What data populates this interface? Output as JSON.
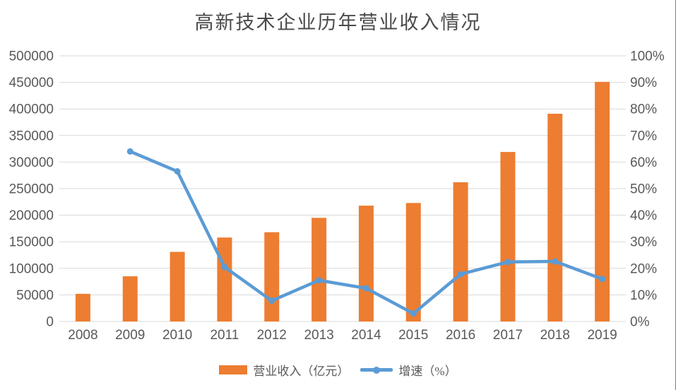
{
  "chart_data": {
    "type": "bar",
    "subtype": "bar-line-combo",
    "title": "高新技术企业历年营业收入情况",
    "categories": [
      "2008",
      "2009",
      "2010",
      "2011",
      "2012",
      "2013",
      "2014",
      "2015",
      "2016",
      "2017",
      "2018",
      "2019"
    ],
    "series": [
      {
        "name": "营业收入（亿元）",
        "type": "bar",
        "axis": "left",
        "color": "#ED7D31",
        "values": [
          52000,
          85000,
          131000,
          158000,
          168000,
          195000,
          218000,
          223000,
          262000,
          319000,
          391000,
          451000
        ]
      },
      {
        "name": "增速（%）",
        "type": "line",
        "axis": "right",
        "color": "#5B9BD5",
        "values": [
          null,
          64,
          56.5,
          20.5,
          7.8,
          15.5,
          12.5,
          3,
          17.8,
          22.4,
          22.6,
          16
        ]
      }
    ],
    "y_left": {
      "min": 0,
      "max": 500000,
      "step": 50000,
      "tick_labels": [
        "0",
        "50000",
        "100000",
        "150000",
        "200000",
        "250000",
        "300000",
        "350000",
        "400000",
        "450000",
        "500000"
      ]
    },
    "y_right": {
      "min": 0,
      "max": 100,
      "step": 10,
      "tick_labels": [
        "0%",
        "10%",
        "20%",
        "30%",
        "40%",
        "50%",
        "60%",
        "70%",
        "80%",
        "90%",
        "100%"
      ]
    },
    "grid": "horizontal-only",
    "legend_position": "bottom",
    "colors": {
      "bar": "#ED7D31",
      "line": "#5B9BD5",
      "gridline": "#D9D9D9",
      "axis_text": "#595959",
      "title_text": "#4a4a4a"
    }
  }
}
